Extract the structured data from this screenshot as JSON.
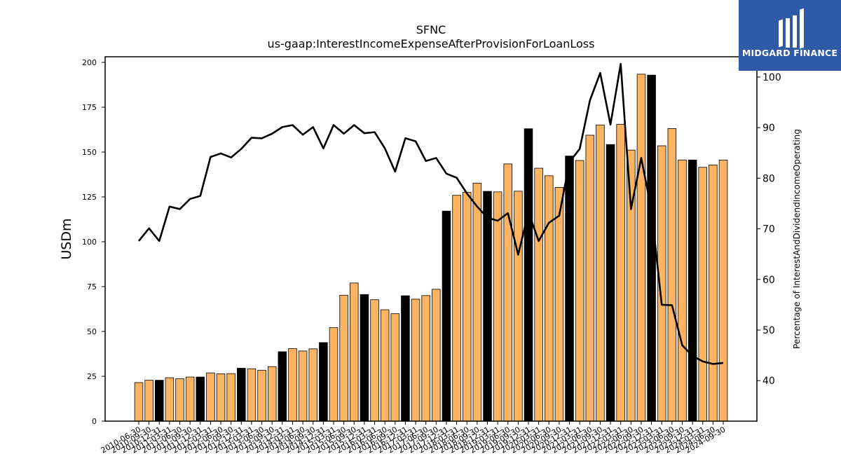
{
  "logo": {
    "text": "MIDGARD FINANCE",
    "icon": "midgard-logo-icon",
    "bg_color": "#2f5aa8"
  },
  "chart_data": {
    "type": "bar",
    "title": "SFNC",
    "subtitle": "us-gaap:InterestIncomeExpenseAfterProvisionForLoanLoss",
    "ylabel": "USDm",
    "y2label": "Percentage of InterestAndDividendIncomeOperating",
    "ylim": [
      0,
      200
    ],
    "y2lim": [
      32,
      104
    ],
    "yticks": [
      0,
      25,
      50,
      75,
      100,
      125,
      150,
      175,
      200
    ],
    "y2ticks": [
      40,
      50,
      60,
      70,
      80,
      90,
      100
    ],
    "colors": {
      "bar": "#fdb462",
      "bar_highlight": "#000000",
      "line": "#000000",
      "edge": "#000000"
    },
    "categories": [
      "2010-06-30",
      "2010-09-30",
      "2010-12-31",
      "2011-03-31",
      "2011-06-30",
      "2011-09-30",
      "2011-12-31",
      "2012-03-31",
      "2012-06-30",
      "2012-09-30",
      "2012-12-31",
      "2013-03-31",
      "2013-06-30",
      "2013-09-30",
      "2013-12-31",
      "2014-03-31",
      "2014-06-30",
      "2014-09-30",
      "2014-12-31",
      "2015-03-31",
      "2015-06-30",
      "2015-09-30",
      "2015-12-31",
      "2016-03-31",
      "2016-06-30",
      "2016-09-30",
      "2016-12-31",
      "2017-03-31",
      "2017-06-30",
      "2017-09-30",
      "2017-12-31",
      "2018-03-31",
      "2018-06-30",
      "2018-09-30",
      "2018-12-31",
      "2019-03-31",
      "2019-06-30",
      "2019-09-30",
      "2019-12-31",
      "2020-03-31",
      "2020-06-30",
      "2020-09-30",
      "2020-12-31",
      "2021-03-31",
      "2021-06-30",
      "2021-09-30",
      "2021-12-31",
      "2022-03-31",
      "2022-06-30",
      "2022-09-30",
      "2022-12-31",
      "2023-03-31",
      "2023-06-30",
      "2023-09-30",
      "2023-12-31",
      "2024-03-31",
      "2024-06-30",
      "2024-09-30"
    ],
    "series": [
      {
        "kind": "bar",
        "values": [
          21.5,
          22.8,
          22.8,
          24.2,
          23.6,
          24.6,
          24.6,
          26.9,
          26.4,
          26.5,
          29.5,
          29.2,
          28.4,
          30.4,
          38.7,
          40.4,
          39.1,
          40.3,
          43.8,
          52.1,
          70.2,
          77.0,
          70.6,
          67.7,
          62.1,
          59.9,
          69.9,
          68.0,
          70.0,
          73.5,
          117.1,
          125.9,
          127.6,
          132.7,
          128.1,
          127.8,
          143.4,
          128.2,
          163.0,
          141.0,
          136.8,
          130.3,
          147.8,
          145.3,
          159.4,
          165.1,
          154.2,
          165.5,
          151.1,
          193.4,
          192.9,
          153.5,
          163.1,
          145.6,
          145.6,
          141.5,
          142.8,
          145.5
        ],
        "highlight": [
          false,
          false,
          true,
          false,
          false,
          false,
          true,
          false,
          false,
          false,
          true,
          false,
          false,
          false,
          true,
          false,
          false,
          false,
          true,
          false,
          false,
          false,
          true,
          false,
          false,
          false,
          true,
          false,
          false,
          false,
          true,
          false,
          false,
          false,
          true,
          false,
          false,
          false,
          true,
          false,
          false,
          false,
          true,
          false,
          false,
          false,
          true,
          false,
          false,
          false,
          true,
          false,
          false,
          false,
          true,
          false,
          false,
          false
        ]
      },
      {
        "kind": "line",
        "axis": "right",
        "values": [
          67.6,
          70.1,
          67.6,
          74.4,
          73.9,
          75.9,
          76.5,
          84.2,
          84.9,
          84.1,
          85.8,
          88.0,
          87.9,
          88.8,
          90.1,
          90.5,
          88.6,
          90.1,
          85.9,
          90.5,
          88.8,
          90.5,
          88.9,
          89.1,
          85.9,
          81.3,
          87.9,
          87.3,
          83.4,
          84.0,
          80.9,
          80.1,
          77.0,
          74.4,
          72.2,
          71.6,
          73.1,
          64.9,
          73.3,
          67.6,
          71.2,
          72.6,
          83.2,
          85.8,
          95.4,
          100.8,
          90.6,
          102.6,
          73.9,
          84.0,
          73.7,
          55.0,
          54.9,
          47.0,
          44.9,
          43.8,
          43.3,
          43.5
        ]
      }
    ],
    "grid": false,
    "legend": "none"
  }
}
